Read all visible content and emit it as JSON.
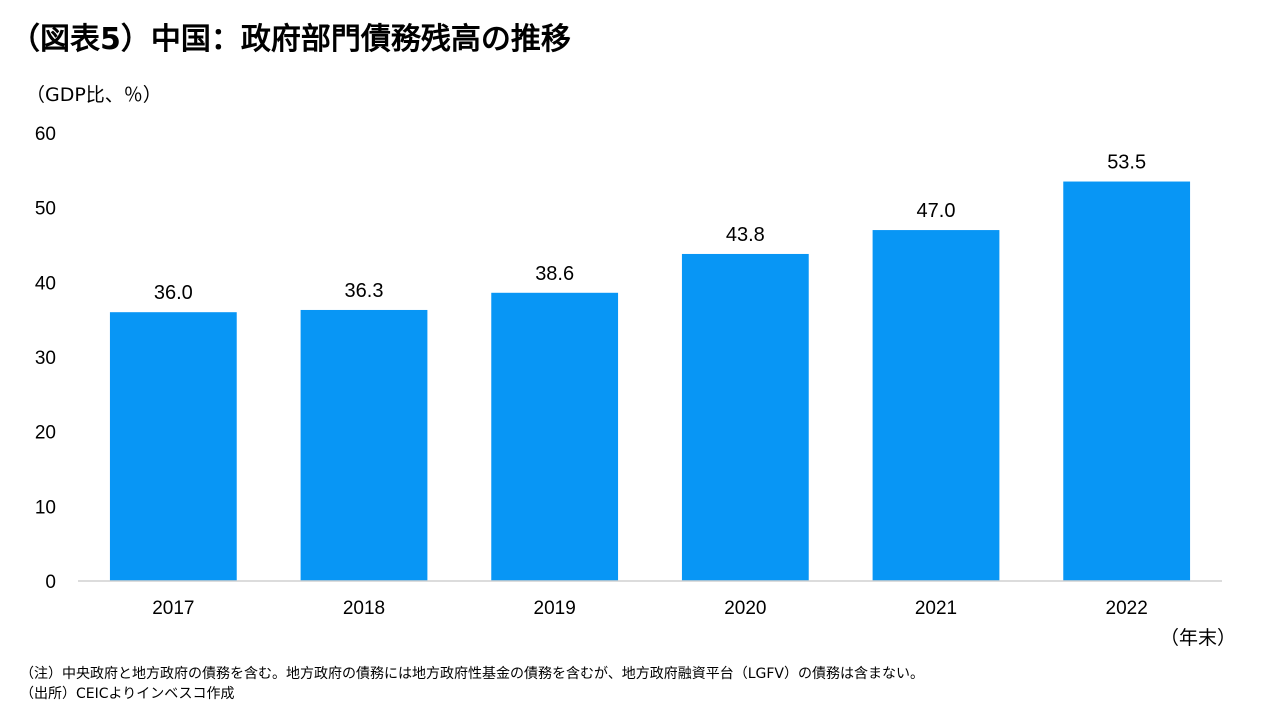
{
  "title": "（図表5）中国：政府部門債務残高の推移",
  "chart_data": {
    "type": "bar",
    "title": "（図表5）中国：政府部門債務残高の推移",
    "ylabel": "（GDP比、％）",
    "xlabel": "（年末）",
    "categories": [
      "2017",
      "2018",
      "2019",
      "2020",
      "2021",
      "2022"
    ],
    "values": [
      36.0,
      36.3,
      38.6,
      43.8,
      47.0,
      53.5
    ],
    "value_labels": [
      "36.0",
      "36.3",
      "38.6",
      "43.8",
      "47.0",
      "53.5"
    ],
    "ylim": [
      0,
      60
    ],
    "yticks": [
      0,
      10,
      20,
      30,
      40,
      50,
      60
    ],
    "grid": false,
    "bar_color": "#0896F5"
  },
  "notes": {
    "note": "（注）中央政府と地方政府の債務を含む。地方政府の債務には地方政府性基金の債務を含むが、地方政府融資平台（LGFV）の債務は含まない。",
    "source": "（出所）CEICよりインベスコ作成"
  }
}
